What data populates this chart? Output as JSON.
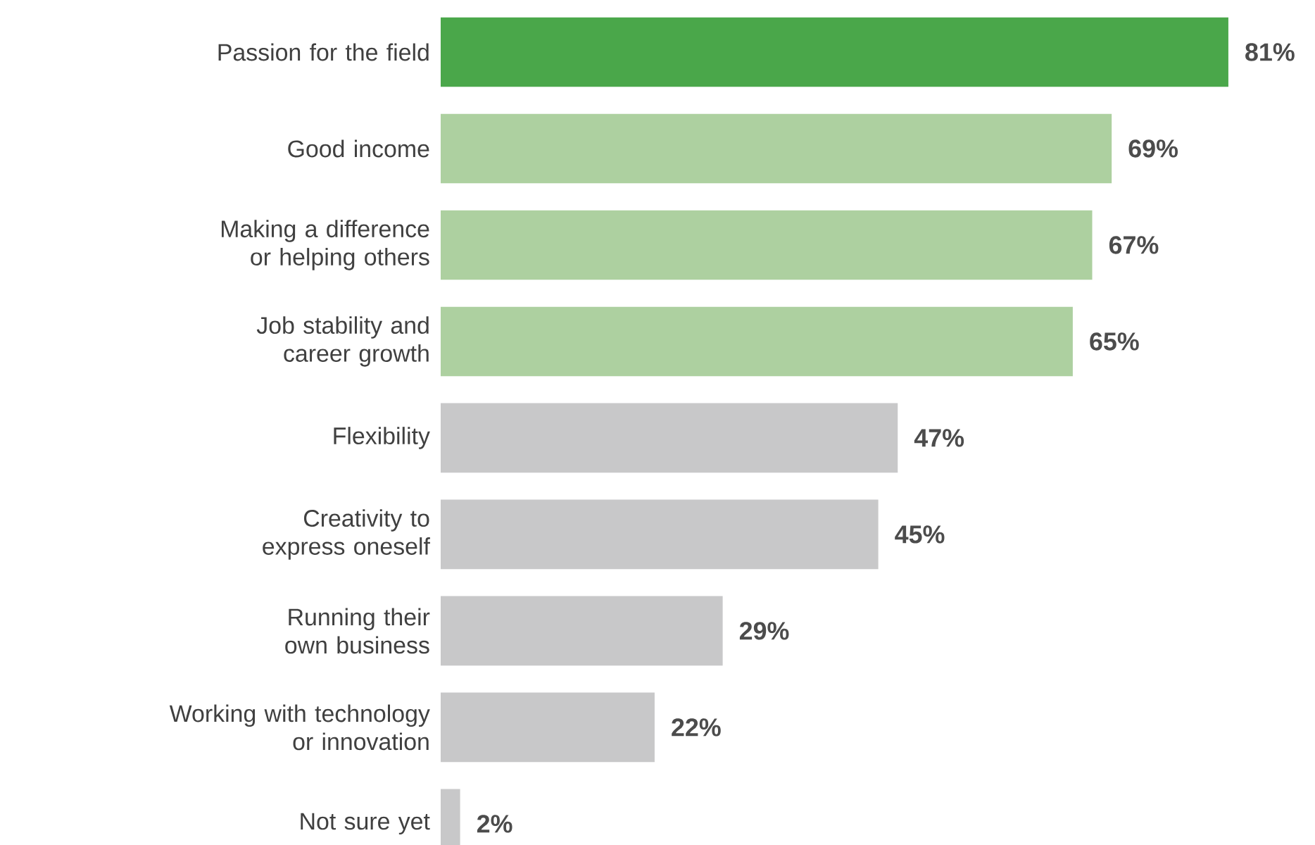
{
  "chart_data": {
    "type": "bar",
    "orientation": "horizontal",
    "categories": [
      "Passion for the field",
      "Good income",
      "Making a difference or helping others",
      "Job stability and career growth",
      "Flexibility",
      "Creativity to express oneself",
      "Running their own business",
      "Working with technology or innovation",
      "Not sure yet"
    ],
    "values": [
      81,
      69,
      67,
      65,
      47,
      45,
      29,
      22,
      2
    ],
    "colors": [
      "#4aa74a",
      "#add0a0",
      "#add0a0",
      "#add0a0",
      "#c8c8c9",
      "#c8c8c9",
      "#c8c8c9",
      "#c8c8c9",
      "#c8c8c9"
    ],
    "value_labels": [
      "81%",
      "69%",
      "67%",
      "65%",
      "47%",
      "45%",
      "29%",
      "22%",
      "2%"
    ]
  }
}
